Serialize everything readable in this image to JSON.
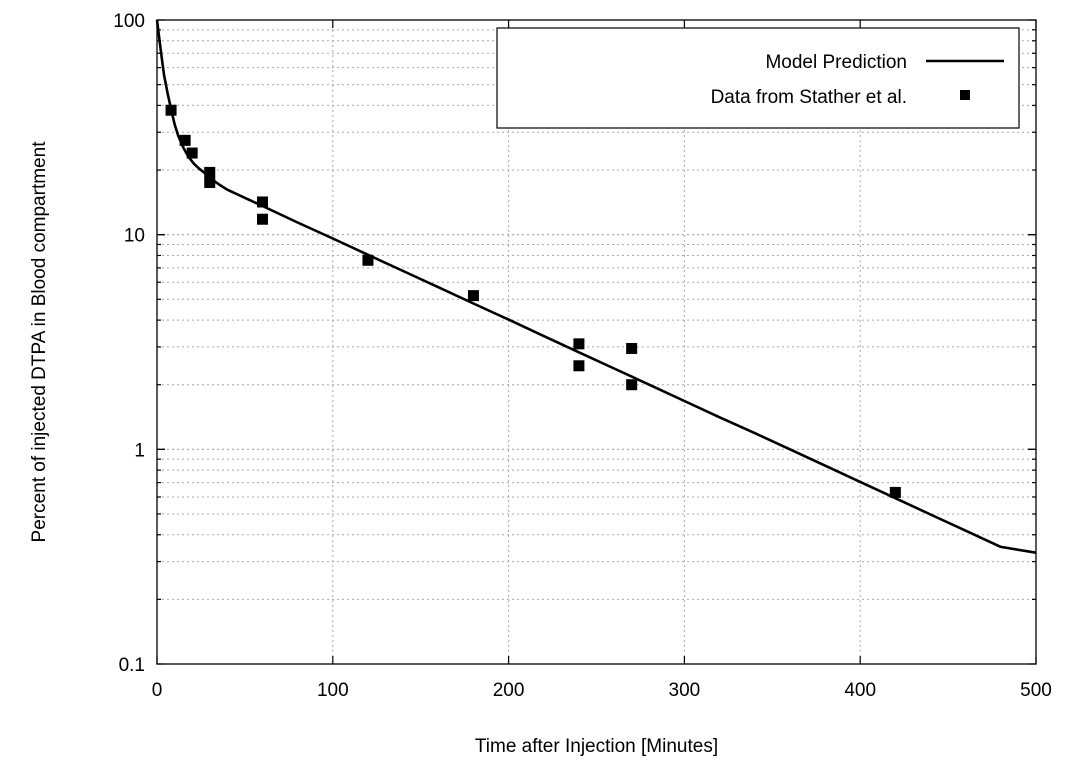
{
  "chart_data": {
    "type": "line",
    "title": "",
    "xlabel": "Time after Injection [Minutes]",
    "ylabel": "Percent of injected DTPA in Blood compartment",
    "xlim": [
      0,
      500
    ],
    "ylim": [
      0.1,
      100
    ],
    "yscale": "log",
    "grid": true,
    "legend_position": "top-right",
    "x_ticks": [
      0,
      100,
      200,
      300,
      400,
      500
    ],
    "x_tick_labels": [
      "0",
      "100",
      "200",
      "300",
      "400",
      "500"
    ],
    "y_ticks": [
      0.1,
      1,
      10,
      100
    ],
    "y_tick_labels": [
      "0.1",
      "1",
      "10",
      "100"
    ],
    "series": [
      {
        "name": "Model Prediction",
        "style": "line",
        "color": "#000000",
        "x": [
          0,
          2,
          4,
          6,
          8,
          10,
          12,
          15,
          18,
          21,
          24,
          27,
          30,
          35,
          40,
          60,
          80,
          100,
          120,
          140,
          160,
          180,
          200,
          220,
          240,
          260,
          280,
          300,
          320,
          340,
          360,
          380,
          400,
          420,
          440,
          460,
          480,
          500
        ],
        "y": [
          100,
          73.9,
          55.5,
          45.8,
          38.4,
          32.7,
          29.0,
          25.4,
          23.0,
          21.4,
          20.3,
          19.4,
          18.4,
          17.2,
          16.2,
          13.6,
          11.4,
          9.6,
          8.06,
          6.77,
          5.69,
          4.78,
          4.02,
          3.37,
          2.83,
          2.38,
          2.0,
          1.68,
          1.41,
          1.19,
          1.0,
          0.84,
          0.705,
          0.592,
          0.497,
          0.418,
          0.351,
          0.33
        ]
      },
      {
        "name": "Data from Stather et al.",
        "style": "markers",
        "marker": "square",
        "color": "#000000",
        "x": [
          8,
          16,
          20,
          30,
          30,
          60,
          60,
          120,
          180,
          240,
          240,
          270,
          270,
          420
        ],
        "y": [
          38,
          27.5,
          24,
          19.5,
          17.5,
          14.2,
          11.8,
          7.6,
          5.2,
          3.1,
          2.45,
          2.95,
          2.0,
          0.63
        ]
      }
    ]
  }
}
